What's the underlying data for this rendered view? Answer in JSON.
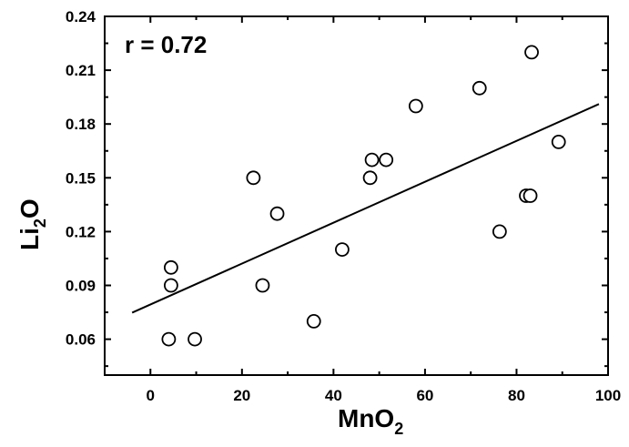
{
  "chart_data": {
    "type": "scatter",
    "title": "",
    "xlabel": {
      "base": "MnO",
      "sub": "2"
    },
    "ylabel": {
      "base": "Li",
      "sub": "2",
      "tail": "O"
    },
    "xlim": [
      -10,
      100
    ],
    "ylim": [
      0.04,
      0.24
    ],
    "x_ticks": [
      0,
      20,
      40,
      60,
      80,
      100
    ],
    "x_tick_labels": [
      "0",
      "20",
      "40",
      "60",
      "80",
      "100"
    ],
    "y_ticks": [
      0.06,
      0.09,
      0.12,
      0.15,
      0.18,
      0.21,
      0.24
    ],
    "y_tick_labels": [
      "0.06",
      "0.09",
      "0.12",
      "0.15",
      "0.18",
      "0.21",
      "0.24"
    ],
    "grid": false,
    "annotation": "r = 0.72",
    "points": [
      {
        "x": 4,
        "y": 0.06
      },
      {
        "x": 9.7,
        "y": 0.06
      },
      {
        "x": 4.5,
        "y": 0.1
      },
      {
        "x": 4.5,
        "y": 0.09
      },
      {
        "x": 22.5,
        "y": 0.15
      },
      {
        "x": 24.5,
        "y": 0.09
      },
      {
        "x": 27.7,
        "y": 0.13
      },
      {
        "x": 35.7,
        "y": 0.07
      },
      {
        "x": 41.9,
        "y": 0.11
      },
      {
        "x": 48,
        "y": 0.15
      },
      {
        "x": 48.4,
        "y": 0.16
      },
      {
        "x": 51.5,
        "y": 0.16
      },
      {
        "x": 58,
        "y": 0.19
      },
      {
        "x": 71.9,
        "y": 0.2
      },
      {
        "x": 76.3,
        "y": 0.12
      },
      {
        "x": 82.1,
        "y": 0.14
      },
      {
        "x": 83,
        "y": 0.14
      },
      {
        "x": 83.3,
        "y": 0.22
      },
      {
        "x": 89.2,
        "y": 0.17
      }
    ],
    "fit_line": {
      "x": [
        -4,
        98
      ],
      "y": [
        0.0748,
        0.1911
      ]
    }
  }
}
